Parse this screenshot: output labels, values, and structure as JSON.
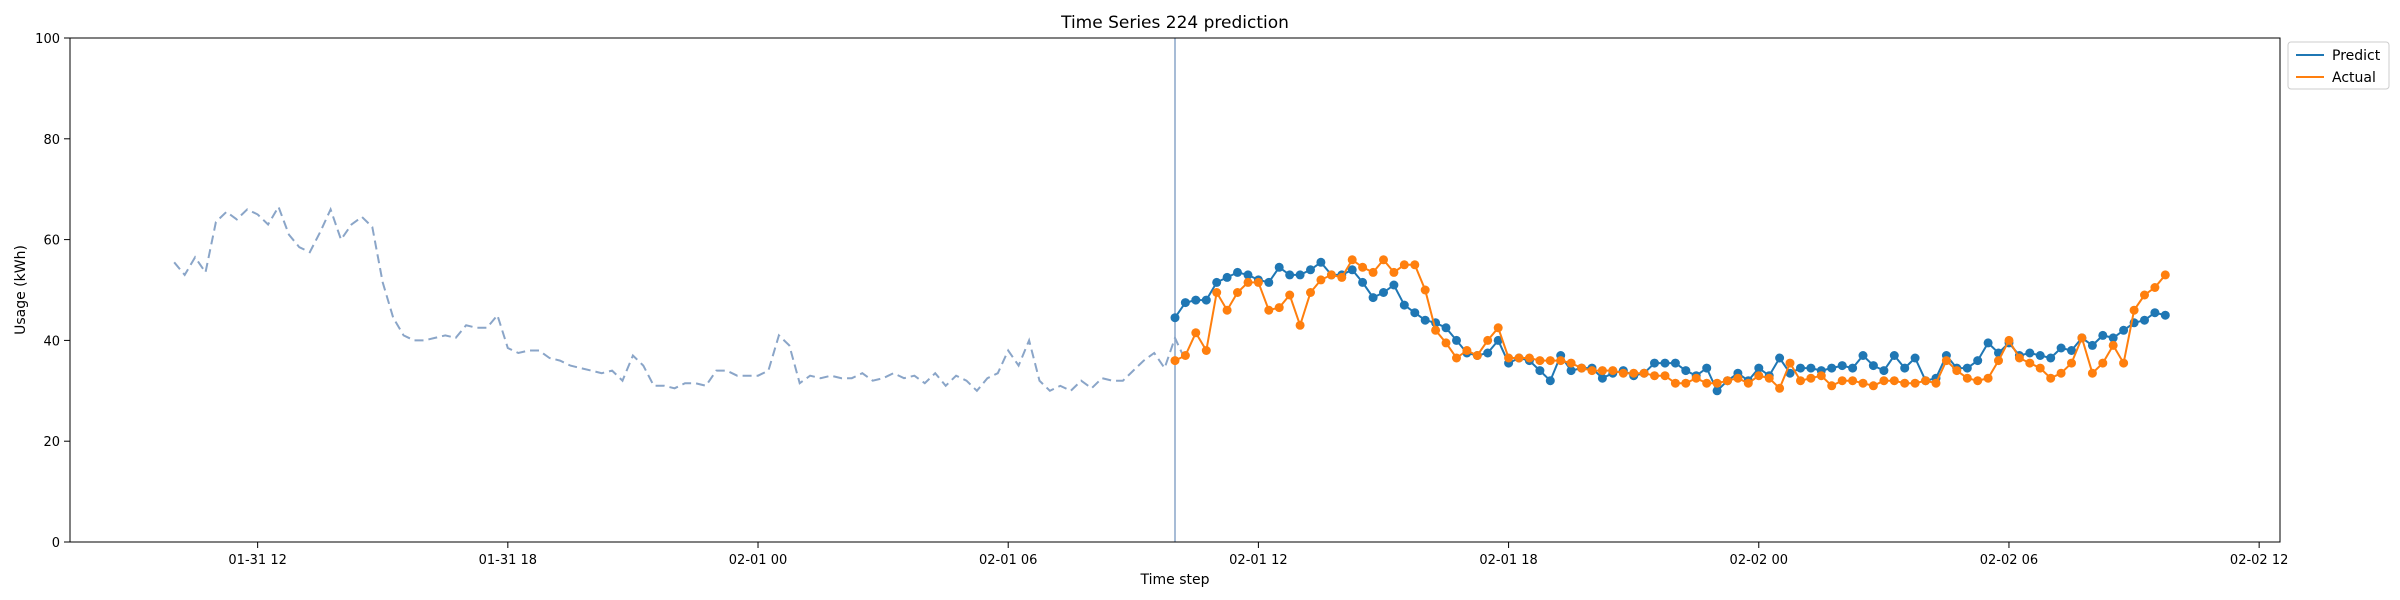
{
  "chart_data": {
    "type": "line",
    "title": "Time Series 224 prediction",
    "xlabel": "Time step",
    "ylabel": "Usage (kWh)",
    "xlim": [
      "2025-01-31 07:30",
      "2025-02-02 12:30"
    ],
    "ylim": [
      0,
      100
    ],
    "x_ticks": [
      "2025-01-31 12:00",
      "2025-01-31 18:00",
      "2025-02-01 00:00",
      "2025-02-01 06:00",
      "2025-02-01 12:00",
      "2025-02-01 18:00",
      "2025-02-02 00:00",
      "2025-02-02 06:00",
      "2025-02-02 12:00"
    ],
    "x_tick_labels": [
      "01-31 12",
      "01-31 18",
      "02-01 00",
      "02-01 06",
      "02-01 12",
      "02-01 18",
      "02-02 00",
      "02-02 06",
      "02-02 12"
    ],
    "y_ticks": [
      0,
      20,
      40,
      60,
      80,
      100
    ],
    "y_tick_labels": [
      "0",
      "20",
      "40",
      "60",
      "80",
      "100"
    ],
    "grid": false,
    "legend_position": "top-right, outside plot",
    "forecast_start": "2025-02-01 10:00",
    "series": [
      {
        "style": "dashed, no markers",
        "color": "#8aa5c8",
        "x_start": "2025-01-31 10:00",
        "interval_minutes": 15,
        "values": [
          55.5,
          53,
          56.5,
          53.5,
          63.5,
          65.5,
          64,
          66,
          65,
          63,
          66.5,
          61,
          58.5,
          57.5,
          61.5,
          66,
          60,
          63,
          64.5,
          62.5,
          51.5,
          44.5,
          41,
          40,
          40,
          40.5,
          41,
          40.5,
          43,
          42.5,
          42.5,
          45,
          38.5,
          37.5,
          38,
          38,
          36.5,
          36,
          35,
          34.5,
          34,
          33.5,
          34,
          32,
          37,
          35,
          31,
          31,
          30.5,
          31.5,
          31.5,
          31,
          34,
          34,
          33,
          33,
          33,
          34,
          41,
          39,
          31.5,
          33,
          32.5,
          33,
          32.5,
          32.5,
          33.5,
          32,
          32.5,
          33.5,
          32.5,
          33,
          31.5,
          33.5,
          31,
          33,
          32,
          30,
          32.5,
          33.5,
          38,
          35,
          40,
          32,
          30,
          31,
          30,
          32,
          30.5,
          32.5,
          32,
          32,
          34,
          36,
          37.5,
          34.5,
          40.5,
          36
        ]
      },
      {
        "name": "Predict",
        "style": "solid with markers",
        "color": "#1f77b4",
        "x_start": "2025-02-01 10:00",
        "interval_minutes": 15,
        "values": [
          44.5,
          47.5,
          48,
          48,
          51.5,
          52.5,
          53.5,
          53,
          52,
          51.5,
          54.5,
          53,
          53,
          54,
          55.5,
          53,
          53,
          54,
          51.5,
          48.5,
          49.5,
          51,
          47,
          45.5,
          44,
          43.5,
          42.5,
          40,
          37.5,
          37,
          37.5,
          40,
          35.5,
          36.5,
          36,
          34,
          32,
          37,
          34,
          34.5,
          34.5,
          32.5,
          33.5,
          34,
          33,
          33.5,
          35.5,
          35.5,
          35.5,
          34,
          33,
          34.5,
          30,
          32,
          33.5,
          32,
          34.5,
          33,
          36.5,
          33.5,
          34.5,
          34.5,
          34,
          34.5,
          35,
          34.5,
          37,
          35,
          34,
          37,
          34.5,
          36.5,
          32,
          32.5,
          37,
          34.5,
          34.5,
          36,
          39.5,
          37.5,
          39.5,
          37,
          37.5,
          37,
          36.5,
          38.5,
          38,
          40.5,
          39,
          41,
          40.5,
          42,
          43.5,
          44,
          45.5,
          45
        ]
      },
      {
        "name": "Actual",
        "style": "solid with markers",
        "color": "#ff7f0e",
        "x_start": "2025-02-01 10:00",
        "interval_minutes": 15,
        "values": [
          36,
          37,
          41.5,
          38,
          49.5,
          46,
          49.5,
          51.5,
          51.5,
          46,
          46.5,
          49,
          43,
          49.5,
          52,
          53,
          52.5,
          56,
          54.5,
          53.5,
          56,
          53.5,
          55,
          55,
          50,
          42,
          39.5,
          36.5,
          38,
          37,
          40,
          42.5,
          36.5,
          36.5,
          36.5,
          36,
          36,
          36,
          35.5,
          34.5,
          34,
          34,
          34,
          33.5,
          33.5,
          33.5,
          33,
          33,
          31.5,
          31.5,
          32.5,
          31.5,
          31.5,
          32,
          32.5,
          31.5,
          33,
          32.5,
          30.5,
          35.5,
          32,
          32.5,
          33,
          31,
          32,
          32,
          31.5,
          31,
          32,
          32,
          31.5,
          31.5,
          32,
          31.5,
          36,
          34,
          32.5,
          32,
          32.5,
          36,
          40,
          36.5,
          35.5,
          34.5,
          32.5,
          33.5,
          35.5,
          40.5,
          33.5,
          35.5,
          39,
          35.5,
          46,
          49,
          50.5,
          53
        ]
      }
    ]
  }
}
